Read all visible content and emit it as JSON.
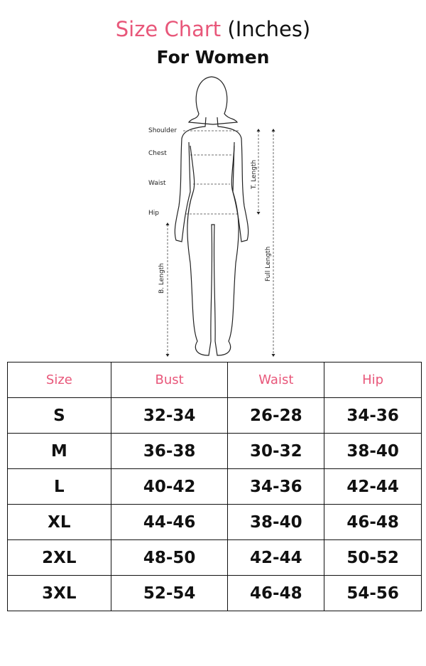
{
  "header": {
    "title_accent": "Size Chart",
    "title_rest": "(Inches)",
    "subtitle": "For Women"
  },
  "figure": {
    "labels": {
      "shoulder": "Shoulder",
      "chest": "Chest",
      "waist": "Waist",
      "hip": "Hip",
      "t_length": "T. Length",
      "b_length": "B. Length",
      "full_length": "Full Length"
    }
  },
  "table": {
    "headers": [
      "Size",
      "Bust",
      "Waist",
      "Hip"
    ],
    "rows": [
      [
        "S",
        "32-34",
        "26-28",
        "34-36"
      ],
      [
        "M",
        "36-38",
        "30-32",
        "38-40"
      ],
      [
        "L",
        "40-42",
        "34-36",
        "42-44"
      ],
      [
        "XL",
        "44-46",
        "38-40",
        "46-48"
      ],
      [
        "2XL",
        "48-50",
        "42-44",
        "50-52"
      ],
      [
        "3XL",
        "52-54",
        "46-48",
        "54-56"
      ]
    ]
  },
  "colors": {
    "accent": "#e8577a",
    "text": "#111111"
  }
}
